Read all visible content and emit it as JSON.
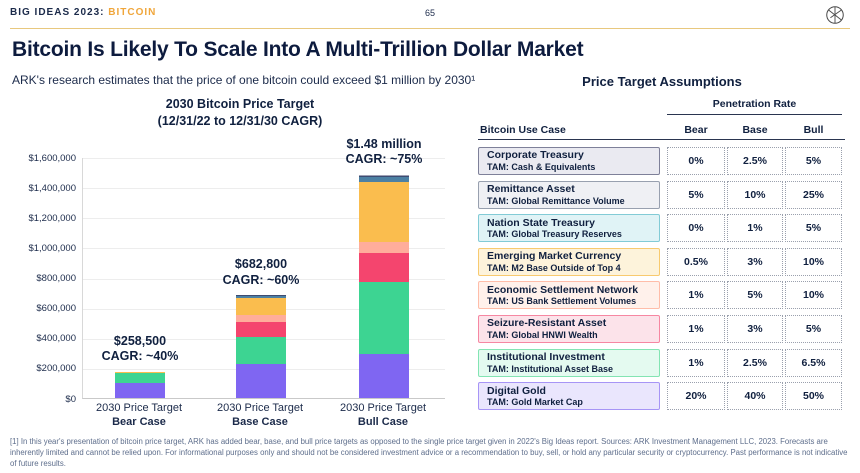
{
  "header": {
    "brand": "BIG IDEAS 2023",
    "separator": ": ",
    "brand_accent": "BITCOIN",
    "page_number": "65"
  },
  "title": "Bitcoin Is Likely To Scale Into A Multi-Trillion Dollar Market",
  "subtitle": "ARK's research estimates that the price of one bitcoin could exceed $1 million by 2030¹",
  "chart_data": {
    "type": "bar",
    "stacked": true,
    "title": "2030 Bitcoin Price Target",
    "subtitle": "(12/31/22 to 12/31/30 CAGR)",
    "ylim": [
      0,
      1600000
    ],
    "ytick_step": 200000,
    "ytick_labels": [
      "$0",
      "$200,000",
      "$400,000",
      "$600,000",
      "$800,000",
      "$1,000,000",
      "$1,200,000",
      "$1,400,000",
      "$1,600,000"
    ],
    "grid": true,
    "legend_position": "none",
    "categories": [
      {
        "xlabel_line1": "2030 Price Target",
        "xlabel_line2": "Bear Case",
        "total_label": "$258,500",
        "cagr_label": "CAGR: ~40%"
      },
      {
        "xlabel_line1": "2030 Price Target",
        "xlabel_line2": "Base Case",
        "total_label": "$682,800",
        "cagr_label": "CAGR: ~60%"
      },
      {
        "xlabel_line1": "2030 Price Target",
        "xlabel_line2": "Bull Case",
        "total_label": "$1.48 million",
        "cagr_label": "CAGR: ~75%"
      }
    ],
    "series": [
      {
        "name": "Digital Gold",
        "color": "#7f66f2",
        "values": [
          100000,
          226000,
          295000
        ]
      },
      {
        "name": "Institutional Investment",
        "color": "#3dd492",
        "values": [
          64000,
          180000,
          477000
        ]
      },
      {
        "name": "Seizure-Resistant Asset",
        "color": "#f4456e",
        "values": [
          2000,
          99000,
          193000
        ]
      },
      {
        "name": "Economic Settlement Network",
        "color": "#ffad9b",
        "values": [
          1500,
          45000,
          70000
        ]
      },
      {
        "name": "Emerging Market Currency",
        "color": "#fabd4e",
        "values": [
          2500,
          117000,
          402000
        ]
      },
      {
        "name": "Nation State Treasury",
        "color": "#4c80a3",
        "values": [
          500,
          10000,
          32000
        ]
      },
      {
        "name": "Remittance Asset",
        "color": "#3d4c72",
        "values": [
          1500,
          4000,
          7000
        ]
      },
      {
        "name": "Corporate Treasury",
        "color": "#9fa2b6",
        "values": [
          500,
          1800,
          4000
        ]
      }
    ]
  },
  "assumptions_table": {
    "title": "Price Target Assumptions",
    "group_header": "Penetration Rate",
    "col_headers": {
      "use_case": "Bitcoin Use Case",
      "bear": "Bear",
      "base": "Base",
      "bull": "Bull"
    },
    "rows": [
      {
        "name": "Corporate Treasury",
        "tam": "TAM: Cash & Equivalents",
        "bear": "0%",
        "base": "2.5%",
        "bull": "5%",
        "border": "#7e8099",
        "fill": "#eaeaf1"
      },
      {
        "name": "Remittance Asset",
        "tam": "TAM: Global Remittance Volume",
        "bear": "5%",
        "base": "10%",
        "bull": "25%",
        "border": "#98a0af",
        "fill": "#eff0f4"
      },
      {
        "name": "Nation State Treasury",
        "tam": "TAM: Global Treasury Reserves",
        "bear": "0%",
        "base": "1%",
        "bull": "5%",
        "border": "#82cbd6",
        "fill": "#e0f3f6"
      },
      {
        "name": "Emerging Market Currency",
        "tam": "TAM: M2 Base Outside of Top 4",
        "bear": "0.5%",
        "base": "3%",
        "bull": "10%",
        "border": "#f8ca6f",
        "fill": "#fdf3db"
      },
      {
        "name": "Economic Settlement Network",
        "tam": "TAM: US Bank Settlement Volumes",
        "bear": "1%",
        "base": "5%",
        "bull": "10%",
        "border": "#ffbda9",
        "fill": "#fff1eb"
      },
      {
        "name": "Seizure-Resistant Asset",
        "tam": "TAM: Global HNWI Wealth",
        "bear": "1%",
        "base": "3%",
        "bull": "5%",
        "border": "#f687a2",
        "fill": "#fce3ea"
      },
      {
        "name": "Institutional Investment",
        "tam": "TAM: Institutional Asset Base",
        "bear": "1%",
        "base": "2.5%",
        "bull": "6.5%",
        "border": "#83e4b3",
        "fill": "#e4faf0"
      },
      {
        "name": "Digital Gold",
        "tam": "TAM: Gold Market Cap",
        "bear": "20%",
        "base": "40%",
        "bull": "50%",
        "border": "#a795f6",
        "fill": "#eae6fd"
      }
    ]
  },
  "footnote": "[1] In this year's presentation of bitcoin price target, ARK has added bear, base, and bull price targets as opposed to the single price target given in 2022's Big Ideas report. Sources: ARK Investment Management LLC, 2023. Forecasts are inherently limited and cannot be relied upon. For informational purposes only and should not be considered investment advice or a recommendation to buy, sell, or hold any particular security or cryptocurrency. Past performance is not indicative of future results."
}
